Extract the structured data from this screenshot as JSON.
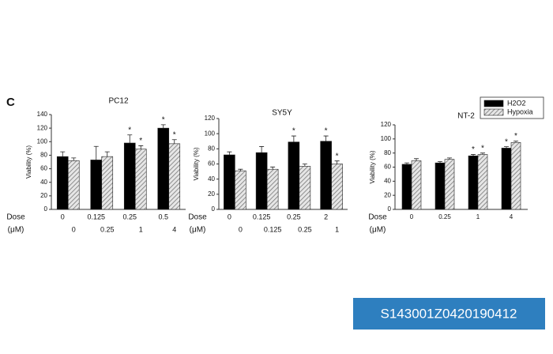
{
  "panel_label": "C",
  "id_badge": "S143001Z0420190412",
  "chart_data": [
    {
      "type": "bar",
      "title": "PC12",
      "y_label": "Viability (%)",
      "row_labels": [
        "Dose",
        "(μM)"
      ],
      "categories": [
        "0",
        "0.125",
        "0.25",
        "0.5"
      ],
      "categories_2": [
        "0",
        "0.25",
        "1",
        "4"
      ],
      "ylim": [
        0,
        140
      ],
      "yticks": [
        0,
        20,
        40,
        60,
        80,
        100,
        120,
        140
      ],
      "series": [
        {
          "name": "H2O2",
          "color": "#000000",
          "pattern": "solid",
          "values": [
            78,
            73,
            98,
            120
          ],
          "errors": [
            7,
            20,
            12,
            5
          ],
          "markers": [
            null,
            null,
            "*",
            "*"
          ]
        },
        {
          "name": "Hypoxia",
          "color": "#bdbdbd",
          "pattern": "hatch",
          "values": [
            72,
            78,
            89,
            97
          ],
          "errors": [
            4,
            7,
            5,
            6
          ],
          "markers": [
            null,
            null,
            "*",
            "*"
          ]
        }
      ],
      "legend": false
    },
    {
      "type": "bar",
      "title": "SY5Y",
      "y_label": "Viability (%)",
      "row_labels": [
        "Dose",
        "(μM)"
      ],
      "categories": [
        "0",
        "0.125",
        "0.25",
        "2"
      ],
      "categories_2": [
        "0",
        "0.125",
        "0.25",
        "1"
      ],
      "ylim": [
        0,
        120
      ],
      "yticks": [
        0,
        20,
        40,
        60,
        80,
        100,
        120
      ],
      "series": [
        {
          "name": "H2O2",
          "color": "#000000",
          "pattern": "solid",
          "values": [
            72,
            75,
            89,
            90
          ],
          "errors": [
            4,
            8,
            8,
            7
          ],
          "markers": [
            null,
            null,
            "*",
            "*"
          ]
        },
        {
          "name": "Hypoxia",
          "color": "#bdbdbd",
          "pattern": "hatch",
          "values": [
            51,
            53,
            57,
            60
          ],
          "errors": [
            2,
            3,
            3,
            4
          ],
          "markers": [
            null,
            null,
            null,
            "*"
          ]
        }
      ],
      "legend": false
    },
    {
      "type": "bar",
      "title": "NT-2",
      "y_label": "Viability (%)",
      "row_labels": [
        "Dose",
        "(μM)"
      ],
      "categories": [
        "0",
        "0.25",
        "1",
        "4"
      ],
      "ylim": [
        0,
        120
      ],
      "yticks": [
        0,
        20,
        40,
        60,
        80,
        100,
        120
      ],
      "series": [
        {
          "name": "H2O2",
          "color": "#000000",
          "pattern": "solid",
          "values": [
            64,
            66,
            76,
            87
          ],
          "errors": [
            2,
            2,
            2,
            2
          ],
          "markers": [
            null,
            null,
            "*",
            "*"
          ]
        },
        {
          "name": "Hypoxia",
          "color": "#bdbdbd",
          "pattern": "hatch",
          "values": [
            69,
            71,
            78,
            95
          ],
          "errors": [
            3,
            2,
            2,
            2
          ],
          "markers": [
            null,
            null,
            "*",
            "*"
          ]
        }
      ],
      "legend": true
    }
  ]
}
